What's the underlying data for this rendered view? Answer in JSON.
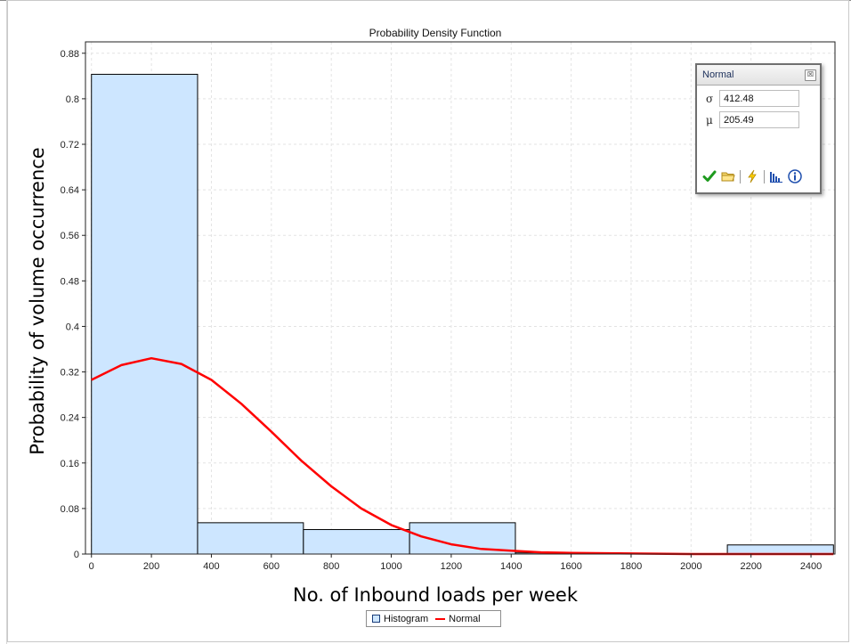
{
  "chart_data": {
    "type": "bar",
    "title": "Probability Density Function",
    "xlabel": "No. of Inbound loads per week",
    "ylabel": "Probability of volume occurrence",
    "xlim": [
      -20,
      2480
    ],
    "ylim": [
      0,
      0.9
    ],
    "x_ticks": [
      0,
      200,
      400,
      600,
      800,
      1000,
      1200,
      1400,
      1600,
      1800,
      2000,
      2200,
      2400
    ],
    "y_ticks": [
      0,
      0.08,
      0.16,
      0.24,
      0.32,
      0.4,
      0.48,
      0.56,
      0.64,
      0.72,
      0.8,
      0.88
    ],
    "grid": true,
    "legend_position": "bottom",
    "histogram": {
      "name": "Histogram",
      "color": "#cde6ff",
      "edge_color": "#000000",
      "bins": [
        {
          "start": 0,
          "end": 354,
          "value": 0.843
        },
        {
          "start": 354,
          "end": 707,
          "value": 0.055
        },
        {
          "start": 707,
          "end": 1061,
          "value": 0.043
        },
        {
          "start": 1061,
          "end": 1414,
          "value": 0.055
        },
        {
          "start": 1414,
          "end": 1768,
          "value": 0.002
        },
        {
          "start": 1768,
          "end": 2121,
          "value": 0.0
        },
        {
          "start": 2121,
          "end": 2475,
          "value": 0.016
        }
      ]
    },
    "series": [
      {
        "name": "Normal",
        "type": "line",
        "color": "#ff0000",
        "x": [
          0,
          100,
          200,
          300,
          400,
          500,
          600,
          700,
          800,
          900,
          1000,
          1100,
          1200,
          1300,
          1400,
          1500,
          1600,
          1800,
          2000,
          2200,
          2400,
          2475
        ],
        "values": [
          0.306,
          0.332,
          0.344,
          0.334,
          0.306,
          0.264,
          0.215,
          0.164,
          0.119,
          0.08,
          0.051,
          0.031,
          0.017,
          0.009,
          0.006,
          0.003,
          0.002,
          0.001,
          0.0,
          0.0,
          0.0,
          0.0
        ]
      }
    ]
  },
  "legend": {
    "histogram_label": "Histogram",
    "normal_label": "Normal"
  },
  "panel": {
    "title": "Normal",
    "close_glyph": "☒",
    "sigma_symbol": "σ",
    "sigma_value": "412.48",
    "mu_symbol": "μ",
    "mu_value": "205.49",
    "icons": [
      "check-icon",
      "folder-icon",
      "lightning-icon",
      "histogram-icon",
      "info-icon"
    ]
  }
}
